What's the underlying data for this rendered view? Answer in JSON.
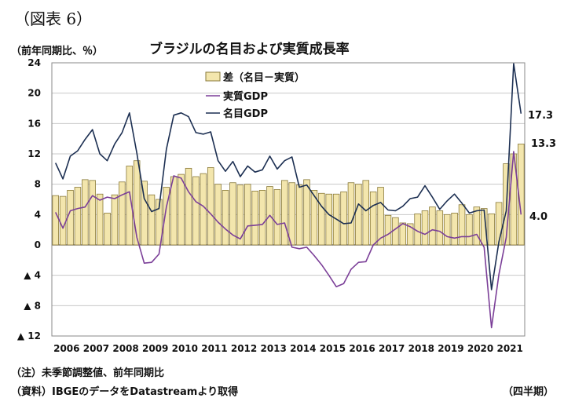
{
  "figure_label": "（図表 6）",
  "unit_label": "（前年同期比、％）",
  "notes": {
    "note1": "（注）未季節調整値、前年同期比",
    "note2": "（資料）IBGEのデータをDatastreamより取得",
    "period": "（四半期）"
  },
  "colors": {
    "bar_fill": "#f3e6ad",
    "bar_stroke": "#8a7a3a",
    "real_line": "#7b3f98",
    "nominal_line": "#1c2f52"
  },
  "chart_data": {
    "type": "bar",
    "title": "ブラジルの名目および実質成長率",
    "ylim": [
      -12,
      24
    ],
    "yticks": [
      24,
      20,
      16,
      12,
      8,
      4,
      0,
      -4,
      -8,
      -12
    ],
    "ytick_labels": [
      "24",
      "20",
      "16",
      "12",
      "8",
      "4",
      "0",
      "▲ 4",
      "▲ 8",
      "▲ 12"
    ],
    "xtick_labels": [
      "2006",
      "2007",
      "2008",
      "2009",
      "2010",
      "2011",
      "2012",
      "2013",
      "2014",
      "2015",
      "2016",
      "2017",
      "2018",
      "2019",
      "2020",
      "2021"
    ],
    "grid": true,
    "legend_position": "top-left",
    "series": [
      {
        "name": "差（名目－実質）",
        "kind": "bar",
        "values": [
          6.5,
          6.4,
          7.2,
          7.6,
          8.6,
          8.5,
          6.7,
          4.2,
          6.6,
          8.3,
          10.4,
          11.1,
          8.4,
          6.6,
          6.0,
          7.6,
          9.0,
          9.3,
          10.1,
          9.0,
          9.4,
          10.2,
          8.0,
          7.2,
          8.2,
          7.9,
          8.0,
          7.1,
          7.2,
          7.7,
          7.3,
          8.5,
          8.2,
          7.9,
          8.6,
          7.2,
          6.8,
          6.7,
          6.7,
          7.0,
          8.2,
          8.0,
          8.5,
          7.0,
          7.6,
          3.9,
          3.6,
          2.9,
          2.8,
          4.1,
          4.5,
          5.0,
          4.5,
          4.0,
          4.2,
          5.3,
          4.0,
          5.0,
          4.8,
          4.1,
          5.6,
          10.7,
          12.0,
          13.3
        ]
      },
      {
        "name": "実質GDP",
        "kind": "line",
        "values": [
          4.3,
          2.2,
          4.5,
          4.8,
          5.0,
          6.5,
          5.9,
          6.3,
          6.1,
          6.6,
          7.0,
          1.0,
          -2.4,
          -2.3,
          -1.2,
          5.0,
          9.1,
          8.8,
          7.0,
          5.7,
          5.1,
          4.1,
          3.0,
          2.1,
          1.3,
          0.8,
          2.5,
          2.6,
          2.7,
          3.9,
          2.7,
          2.9,
          -0.3,
          -0.5,
          -0.3,
          -1.4,
          -2.6,
          -4.0,
          -5.5,
          -5.1,
          -3.2,
          -2.3,
          -2.2,
          0.0,
          0.9,
          1.4,
          2.1,
          2.8,
          2.4,
          1.8,
          1.4,
          2.0,
          1.8,
          1.1,
          0.9,
          1.1,
          1.1,
          1.4,
          -0.3,
          -10.9,
          -3.9,
          1.0,
          12.3,
          4.0
        ]
      },
      {
        "name": "名目GDP",
        "kind": "line",
        "values": [
          10.8,
          8.7,
          11.7,
          12.4,
          13.9,
          15.2,
          12.0,
          11.1,
          13.3,
          14.8,
          17.4,
          12.1,
          6.1,
          4.4,
          4.8,
          12.6,
          17.1,
          17.4,
          16.9,
          14.8,
          14.6,
          14.9,
          11.1,
          9.7,
          11.0,
          9.0,
          10.4,
          9.6,
          9.9,
          11.7,
          10.0,
          11.1,
          11.6,
          7.6,
          7.9,
          6.5,
          5.1,
          4.0,
          3.4,
          2.8,
          2.9,
          5.4,
          4.5,
          5.2,
          5.6,
          4.6,
          4.5,
          5.1,
          6.1,
          6.3,
          7.8,
          6.3,
          4.7,
          5.8,
          6.7,
          5.5,
          4.2,
          4.5,
          4.6,
          -5.9,
          0.4,
          4.5,
          23.9,
          17.3
        ]
      }
    ],
    "end_labels": [
      "17.3",
      "13.3",
      "4.0"
    ]
  }
}
